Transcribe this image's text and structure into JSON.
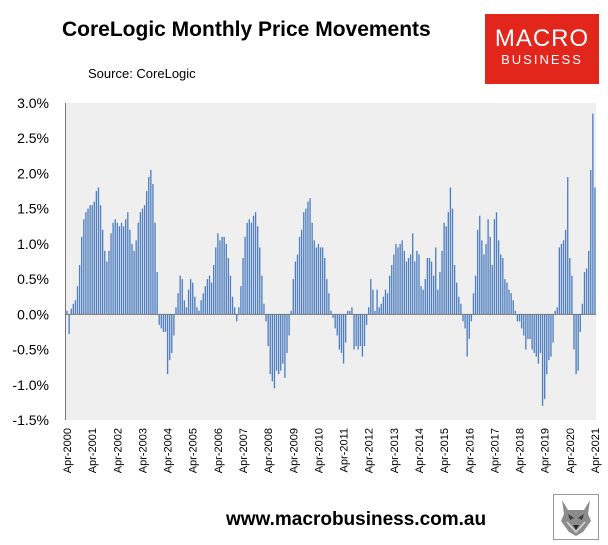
{
  "header": {
    "title": "CoreLogic Monthly Price Movements",
    "source": "Source: CoreLogic"
  },
  "logo": {
    "line1": "MACRO",
    "line2": "BUSINESS"
  },
  "footer": {
    "url": "www.macrobusiness.com.au",
    "icon": "wolf-logo-icon"
  },
  "colors": {
    "bar": "#4f7fc0",
    "plot_bg": "#efefef",
    "brand": "#e2261c"
  },
  "chart_data": {
    "type": "bar",
    "title": "CoreLogic Monthly Price Movements",
    "ylim": [
      -1.5,
      3.0
    ],
    "yticks": [
      -1.5,
      -1.0,
      -0.5,
      0.0,
      0.5,
      1.0,
      1.5,
      2.0,
      2.5,
      3.0
    ],
    "ytick_labels": [
      "-1.5%",
      "-1.0%",
      "-0.5%",
      "0.0%",
      "0.5%",
      "1.0%",
      "1.5%",
      "2.0%",
      "2.5%",
      "3.0%"
    ],
    "xtick_labels": [
      "Apr-2000",
      "Apr-2001",
      "Apr-2002",
      "Apr-2003",
      "Apr-2004",
      "Apr-2005",
      "Apr-2006",
      "Apr-2007",
      "Apr-2008",
      "Apr-2009",
      "Apr-2010",
      "Apr-2011",
      "Apr-2012",
      "Apr-2013",
      "Apr-2014",
      "Apr-2015",
      "Apr-2016",
      "Apr-2017",
      "Apr-2018",
      "Apr-2019",
      "Apr-2020",
      "Apr-2021"
    ],
    "start_month": "Apr-2000",
    "grid": false,
    "legend": "none",
    "series": [
      {
        "values": [
          0.05,
          -0.28,
          0.08,
          0.15,
          0.2,
          0.4,
          0.7,
          1.1,
          1.35,
          1.45,
          1.5,
          1.55,
          1.55,
          1.6,
          1.75,
          1.8,
          1.55,
          1.2,
          0.9,
          0.75,
          0.9,
          1.15,
          1.3,
          1.35,
          1.3,
          1.25,
          1.3,
          1.25,
          1.35,
          1.45,
          1.2,
          1.0,
          0.9,
          1.05,
          1.3,
          1.45,
          1.5,
          1.55,
          1.75,
          1.95,
          2.05,
          1.85,
          1.3,
          0.6,
          -0.15,
          -0.2,
          -0.25,
          -0.25,
          -0.85,
          -0.65,
          -0.55,
          -0.3,
          0.1,
          0.3,
          0.55,
          0.5,
          0.2,
          0.1,
          0.35,
          0.5,
          0.45,
          0.25,
          0.1,
          0.05,
          0.2,
          0.3,
          0.4,
          0.5,
          0.55,
          0.45,
          0.7,
          0.95,
          1.15,
          1.05,
          1.1,
          1.1,
          1.0,
          0.8,
          0.55,
          0.25,
          0.1,
          -0.1,
          0.1,
          0.4,
          0.8,
          1.1,
          1.3,
          1.35,
          1.3,
          1.4,
          1.45,
          1.25,
          0.95,
          0.55,
          0.15,
          -0.1,
          -0.45,
          -0.85,
          -0.95,
          -1.05,
          -0.8,
          -0.85,
          -0.8,
          -0.7,
          -0.9,
          -0.55,
          -0.3,
          0.05,
          0.5,
          0.75,
          0.85,
          1.1,
          1.2,
          1.45,
          1.5,
          1.6,
          1.65,
          1.3,
          1.05,
          0.95,
          1.0,
          0.95,
          0.95,
          0.8,
          0.5,
          0.3,
          0.05,
          -0.05,
          -0.2,
          -0.3,
          -0.5,
          -0.55,
          -0.7,
          -0.4,
          0.05,
          0.05,
          0.1,
          -0.5,
          -0.45,
          -0.5,
          -0.45,
          -0.6,
          -0.45,
          -0.15,
          0.1,
          0.5,
          0.35,
          0.05,
          0.35,
          0.1,
          0.15,
          0.25,
          0.35,
          0.3,
          0.55,
          0.7,
          0.85,
          1.0,
          0.95,
          1.0,
          1.05,
          0.9,
          0.75,
          0.8,
          0.85,
          1.15,
          0.75,
          0.9,
          0.85,
          0.4,
          0.35,
          0.5,
          0.8,
          0.8,
          0.75,
          0.55,
          0.95,
          0.35,
          0.6,
          0.9,
          1.3,
          1.25,
          1.45,
          1.8,
          1.5,
          0.7,
          0.45,
          0.25,
          0.15,
          -0.1,
          -0.2,
          -0.6,
          -0.35,
          -0.1,
          0.3,
          0.55,
          1.2,
          1.4,
          1.05,
          0.85,
          1.0,
          1.35,
          1.1,
          0.7,
          1.35,
          1.45,
          1.05,
          0.85,
          0.8,
          0.5,
          0.45,
          0.35,
          0.3,
          0.2,
          0.05,
          -0.1,
          -0.1,
          -0.2,
          -0.3,
          -0.5,
          -0.35,
          -0.35,
          -0.5,
          -0.55,
          -0.6,
          -0.7,
          -0.55,
          -1.3,
          -1.2,
          -0.85,
          -0.65,
          -0.6,
          -0.4,
          0.05,
          0.1,
          0.95,
          1.0,
          1.05,
          1.2,
          1.95,
          0.8,
          0.55,
          -0.5,
          -0.85,
          -0.8,
          -0.25,
          0.15,
          0.6,
          0.65,
          0.9,
          2.05,
          2.85,
          1.8
        ]
      }
    ]
  }
}
